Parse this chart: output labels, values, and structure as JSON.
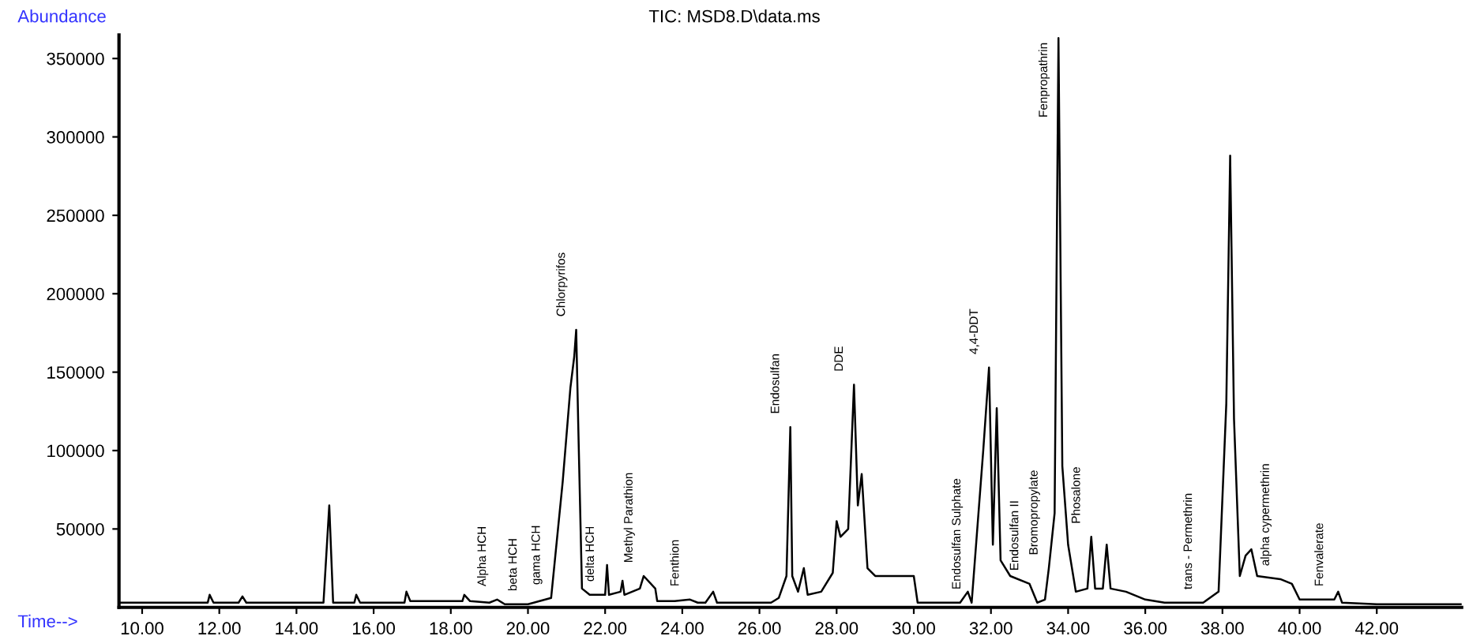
{
  "chart_data": {
    "type": "line",
    "title": "TIC: MSD8.D\\data.ms",
    "xlabel": "Time-->",
    "ylabel": "Abundance",
    "x": [
      9.4,
      10,
      11.7,
      11.75,
      11.85,
      12.5,
      12.6,
      12.7,
      14.7,
      14.85,
      14.95,
      15.5,
      15.55,
      15.65,
      16.8,
      16.85,
      16.95,
      18.3,
      18.35,
      18.5,
      19.0,
      19.2,
      19.4,
      20.0,
      20.3,
      20.6,
      20.9,
      21.1,
      21.2,
      21.25,
      21.3,
      21.4,
      21.6,
      22.0,
      22.05,
      22.1,
      22.4,
      22.45,
      22.5,
      22.9,
      23.0,
      23.3,
      23.35,
      23.8,
      24.2,
      24.4,
      24.6,
      24.8,
      24.9,
      25.5,
      26.3,
      26.5,
      26.7,
      26.8,
      26.85,
      27.0,
      27.15,
      27.25,
      27.6,
      27.9,
      28.0,
      28.1,
      28.3,
      28.45,
      28.55,
      28.65,
      28.8,
      29.0,
      29.3,
      30.0,
      30.1,
      31.2,
      31.4,
      31.5,
      31.8,
      31.95,
      32.05,
      32.15,
      32.25,
      32.5,
      33.0,
      33.2,
      33.4,
      33.5,
      33.65,
      33.75,
      33.85,
      34.0,
      34.2,
      34.5,
      34.6,
      34.7,
      34.9,
      35.0,
      35.1,
      35.5,
      36.0,
      36.5,
      37.5,
      37.9,
      38.1,
      38.2,
      38.3,
      38.45,
      38.6,
      38.75,
      38.9,
      39.5,
      39.8,
      40.0,
      40.9,
      41.0,
      41.1,
      42,
      44.2
    ],
    "series": [
      {
        "color": "#000000",
        "values": [
          3000,
          3000,
          3000,
          8000,
          3000,
          3000,
          7000,
          3000,
          3000,
          65000,
          3000,
          3000,
          8000,
          3000,
          3000,
          10000,
          4000,
          4000,
          8000,
          4000,
          3000,
          5000,
          2000,
          2000,
          4000,
          6000,
          80000,
          140000,
          160000,
          177000,
          120000,
          12000,
          8000,
          8000,
          27000,
          8000,
          10000,
          17000,
          8000,
          12000,
          20000,
          12000,
          4000,
          4000,
          5000,
          3000,
          3000,
          10000,
          3000,
          3000,
          3000,
          6000,
          20000,
          115000,
          20000,
          10000,
          25000,
          8000,
          10000,
          22000,
          55000,
          45000,
          50000,
          142000,
          65000,
          85000,
          25000,
          20000,
          20000,
          20000,
          3000,
          3000,
          10000,
          3000,
          100000,
          153000,
          40000,
          127000,
          30000,
          20000,
          15000,
          3000,
          5000,
          25000,
          60000,
          363000,
          90000,
          40000,
          10000,
          12000,
          45000,
          12000,
          12000,
          40000,
          12000,
          10000,
          5000,
          3000,
          3000,
          10000,
          130000,
          288000,
          120000,
          20000,
          33000,
          37000,
          20000,
          18000,
          15000,
          5000,
          5000,
          10000,
          3000,
          2000,
          2000
        ]
      }
    ],
    "xlim": [
      9.4,
      44.2
    ],
    "ylim": [
      0,
      365000
    ],
    "xticks": [
      {
        "value": 10,
        "label": "10.00"
      },
      {
        "value": 12,
        "label": "12.00"
      },
      {
        "value": 14,
        "label": "14.00"
      },
      {
        "value": 16,
        "label": "16.00"
      },
      {
        "value": 18,
        "label": "18.00"
      },
      {
        "value": 20,
        "label": "20.00"
      },
      {
        "value": 22,
        "label": "22.00"
      },
      {
        "value": 24,
        "label": "24.00"
      },
      {
        "value": 26,
        "label": "26.00"
      },
      {
        "value": 28,
        "label": "28.00"
      },
      {
        "value": 30,
        "label": "30.00"
      },
      {
        "value": 32,
        "label": "32.00"
      },
      {
        "value": 34,
        "label": "34.00"
      },
      {
        "value": 36,
        "label": "36.00"
      },
      {
        "value": 38,
        "label": "38.00"
      },
      {
        "value": 40,
        "label": "40.00"
      },
      {
        "value": 42,
        "label": "42.00"
      }
    ],
    "yticks": [
      50000,
      100000,
      150000,
      200000,
      250000,
      300000,
      350000
    ],
    "grid": false,
    "legend": false,
    "annotations": [
      {
        "text": "Alpha HCH",
        "x": 19.2,
        "y": 5000
      },
      {
        "text": "beta HCH",
        "x": 20.0,
        "y": 2000
      },
      {
        "text": "gama HCH",
        "x": 20.6,
        "y": 6000
      },
      {
        "text": "Chlorpyrifos",
        "x": 21.25,
        "y": 177000
      },
      {
        "text": "delta HCH",
        "x": 22.0,
        "y": 8000
      },
      {
        "text": "Methyl Parathion",
        "x": 23.0,
        "y": 20000
      },
      {
        "text": "Fenthion",
        "x": 24.2,
        "y": 5000
      },
      {
        "text": "Endosulfan",
        "x": 26.8,
        "y": 115000
      },
      {
        "text": "DDE",
        "x": 28.45,
        "y": 142000
      },
      {
        "text": "Endosulfan Sulphate",
        "x": 31.5,
        "y": 3000
      },
      {
        "text": "4,4-DDT",
        "x": 31.95,
        "y": 153000
      },
      {
        "text": "Endosulfan II",
        "x": 33.0,
        "y": 15000
      },
      {
        "text": "Bromopropylate",
        "x": 33.5,
        "y": 25000
      },
      {
        "text": "Fenpropathrin",
        "x": 33.75,
        "y": 363000
      },
      {
        "text": "Phosalone",
        "x": 34.6,
        "y": 45000
      },
      {
        "text": "trans - Permethrin",
        "x": 37.5,
        "y": 3000
      },
      {
        "text": "alpha cypermethrin",
        "x": 39.5,
        "y": 18000
      },
      {
        "text": "Fenvalerate",
        "x": 40.9,
        "y": 5000
      }
    ]
  }
}
